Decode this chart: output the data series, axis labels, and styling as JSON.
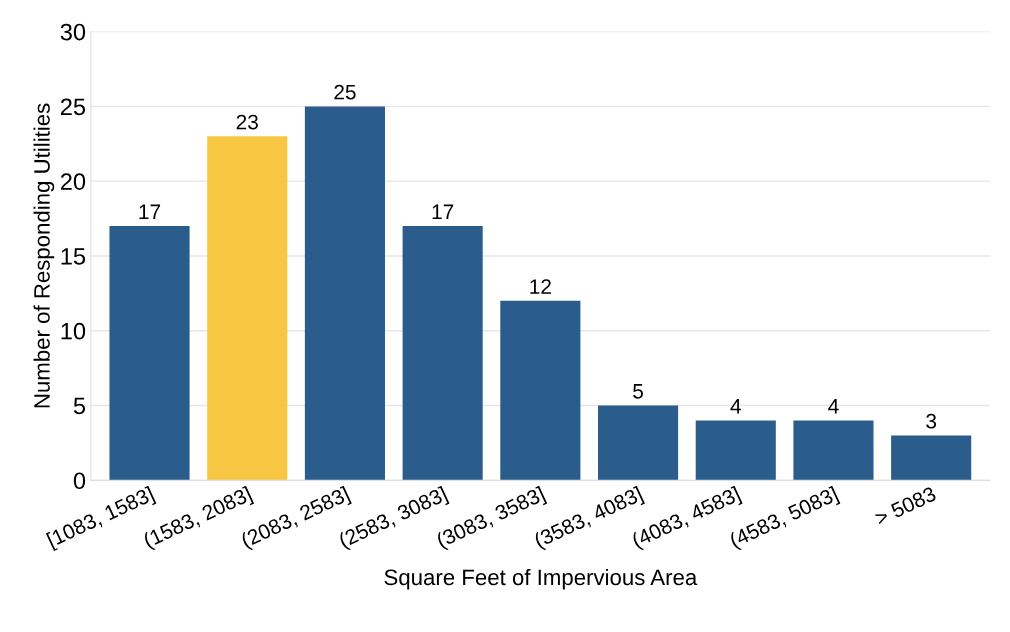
{
  "chart_data": {
    "type": "bar",
    "xlabel": "Square Feet of Impervious Area",
    "ylabel": "Number of Responding Utilities",
    "categories": [
      "[1083, 1583]",
      "(1583, 2083]",
      "(2083, 2583]",
      "(2583, 3083]",
      "(3083, 3583]",
      "(3583, 4083]",
      "(4083, 4583]",
      "(4583, 5083]",
      "> 5083"
    ],
    "values": [
      17,
      23,
      25,
      17,
      12,
      5,
      4,
      4,
      3
    ],
    "colors": [
      "#2b5d8c",
      "#f7c744",
      "#2b5d8c",
      "#2b5d8c",
      "#2b5d8c",
      "#2b5d8c",
      "#2b5d8c",
      "#2b5d8c",
      "#2b5d8c"
    ],
    "ylim": [
      0,
      30
    ],
    "yticks": [
      0,
      5,
      10,
      15,
      20,
      25,
      30
    ],
    "grid": "y",
    "data_labels": true
  }
}
